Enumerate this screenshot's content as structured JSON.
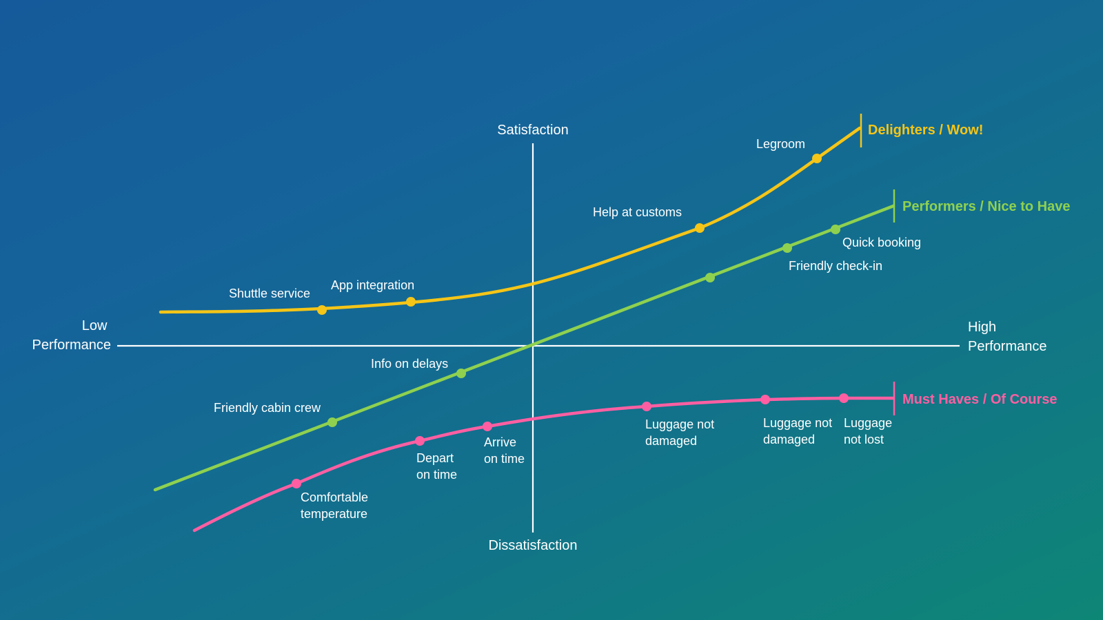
{
  "axes": {
    "y_top": "Satisfaction",
    "y_bottom": "Dissatisfaction",
    "x_left": [
      "Low",
      "Performance"
    ],
    "x_right": [
      "High",
      "Performance"
    ]
  },
  "categories": [
    {
      "id": "delighters",
      "label": "Delighters / Wow!",
      "color": "#f5c518",
      "points": [
        {
          "label": [
            "Shuttle service"
          ]
        },
        {
          "label": [
            "App integration"
          ]
        },
        {
          "label": [
            "Help at customs"
          ]
        },
        {
          "label": [
            "Legroom"
          ]
        }
      ]
    },
    {
      "id": "performers",
      "label": "Performers / Nice to Have",
      "color": "#8fd14f",
      "points": [
        {
          "label": [
            "Friendly cabin crew"
          ]
        },
        {
          "label": [
            "Info on delays"
          ]
        },
        {
          "label": [
            ""
          ]
        },
        {
          "label": [
            "Friendly check-in"
          ]
        },
        {
          "label": [
            "Quick booking"
          ]
        }
      ]
    },
    {
      "id": "must-haves",
      "label": "Must Haves / Of Course",
      "color": "#ff5fa2",
      "points": [
        {
          "label": [
            "Comfortable",
            "temperature"
          ]
        },
        {
          "label": [
            "Depart",
            "on time"
          ]
        },
        {
          "label": [
            "Arrive",
            "on time"
          ]
        },
        {
          "label": [
            "Luggage not",
            "damaged"
          ]
        },
        {
          "label": [
            "Luggage not",
            "damaged"
          ]
        },
        {
          "label": [
            "Luggage",
            "not lost"
          ]
        }
      ]
    }
  ]
}
